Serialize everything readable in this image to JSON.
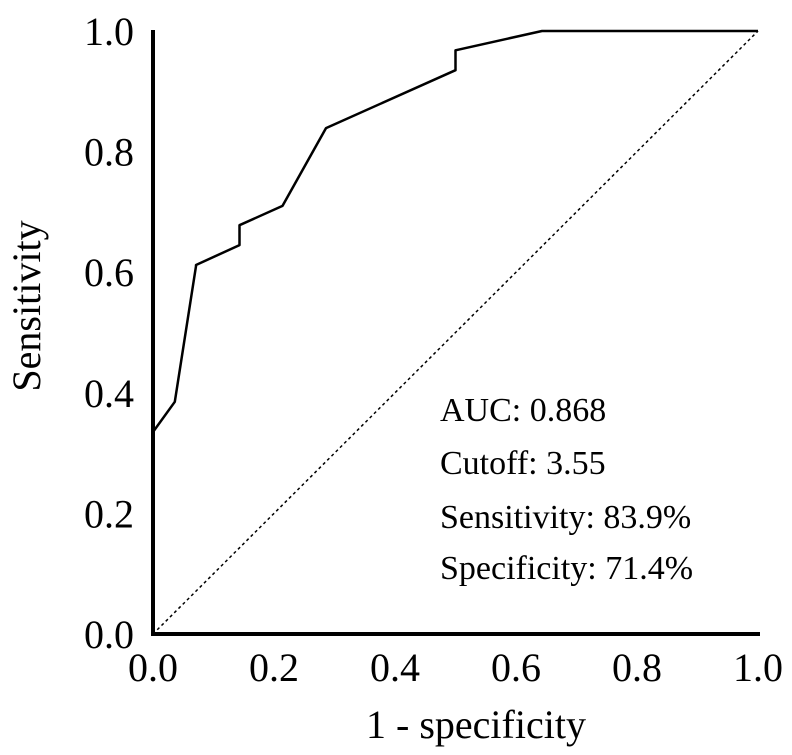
{
  "chart_data": {
    "type": "line",
    "xlabel": "1 - specificity",
    "ylabel": "Sensitivity",
    "xlim": [
      0.0,
      1.0
    ],
    "ylim": [
      0.0,
      1.0
    ],
    "x_ticks": [
      "0.0",
      "0.2",
      "0.4",
      "0.6",
      "0.8",
      "1.0"
    ],
    "y_ticks": [
      "0.0",
      "0.2",
      "0.4",
      "0.6",
      "0.8",
      "1.0"
    ],
    "grid": false,
    "legend": "none",
    "series": [
      {
        "style": "solid",
        "color": "#000000",
        "x": [
          0.0,
          0.036,
          0.071,
          0.071,
          0.143,
          0.143,
          0.214,
          0.286,
          0.5,
          0.5,
          0.643,
          1.0
        ],
        "y": [
          0.335,
          0.385,
          0.61,
          0.612,
          0.645,
          0.678,
          0.71,
          0.839,
          0.935,
          0.968,
          1.0,
          1.0
        ]
      },
      {
        "style": "dashed",
        "color": "#000000",
        "x": [
          0.0,
          1.0
        ],
        "y": [
          0.0,
          1.0
        ]
      }
    ],
    "annotations": [
      "AUC: 0.868",
      "Cutoff: 3.55",
      "Sensitivity: 83.9%",
      "Specificity: 71.4%"
    ]
  }
}
